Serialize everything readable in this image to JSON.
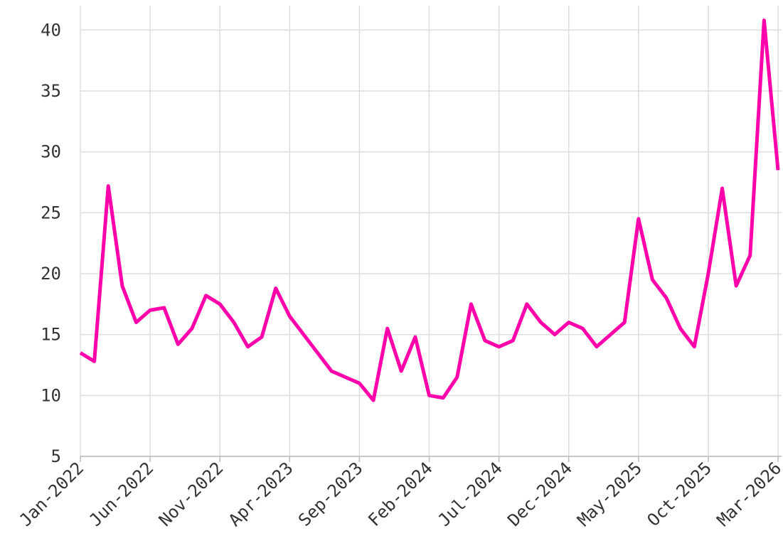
{
  "chart_data": {
    "type": "line",
    "x": [
      "Jan-2022",
      "Feb-2022",
      "Mar-2022",
      "Apr-2022",
      "May-2022",
      "Jun-2022",
      "Jul-2022",
      "Aug-2022",
      "Sep-2022",
      "Oct-2022",
      "Nov-2022",
      "Dec-2022",
      "Jan-2023",
      "Feb-2023",
      "Mar-2023",
      "Apr-2023",
      "May-2023",
      "Jun-2023",
      "Jul-2023",
      "Aug-2023",
      "Sep-2023",
      "Oct-2023",
      "Nov-2023",
      "Dec-2023",
      "Jan-2024",
      "Feb-2024",
      "Mar-2024",
      "Apr-2024",
      "May-2024",
      "Jun-2024",
      "Jul-2024",
      "Aug-2024",
      "Sep-2024",
      "Oct-2024",
      "Nov-2024",
      "Dec-2024",
      "Jan-2025",
      "Feb-2025",
      "Mar-2025",
      "Apr-2025",
      "May-2025",
      "Jun-2025",
      "Jul-2025",
      "Aug-2025",
      "Sep-2025",
      "Oct-2025",
      "Nov-2025",
      "Dec-2025",
      "Jan-2026",
      "Feb-2026",
      "Mar-2026"
    ],
    "series": [
      {
        "color": "#ff00aa",
        "values": [
          13.5,
          12.8,
          27.2,
          19,
          16,
          17,
          17.2,
          14.2,
          15.5,
          18.2,
          17.5,
          16,
          14,
          14.8,
          18.8,
          16.5,
          15,
          13.5,
          12,
          11.5,
          11,
          9.6,
          15.5,
          12,
          14.8,
          10,
          9.8,
          11.5,
          17.5,
          14.5,
          14,
          14.5,
          17.5,
          16,
          15,
          16,
          15.5,
          14,
          15,
          16,
          24.5,
          19.5,
          18,
          15.5,
          14,
          20,
          27,
          19,
          21.5,
          40.8,
          28.5
        ]
      }
    ],
    "xticks": [
      "Jan-2022",
      "Jun-2022",
      "Nov-2022",
      "Apr-2023",
      "Sep-2023",
      "Feb-2024",
      "Jul-2024",
      "Dec-2024",
      "May-2025",
      "Oct-2025",
      "Mar-2026"
    ],
    "ylim": [
      5,
      42
    ],
    "yticks": [
      5,
      10,
      15,
      20,
      25,
      30,
      35,
      40
    ],
    "grid": true
  }
}
